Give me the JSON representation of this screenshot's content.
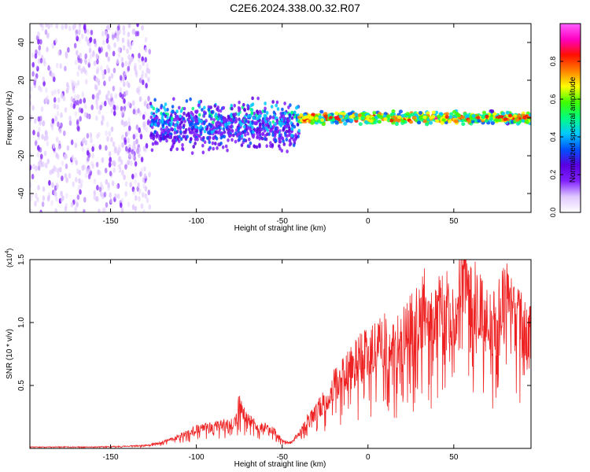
{
  "figure": {
    "title": "C2E6.2024.338.00.32.R07"
  },
  "chart_data": [
    {
      "type": "heatmap",
      "xlabel": "Height of straight line (km)",
      "ylabel": "Frequency (Hz)",
      "xlim": [
        -197,
        95
      ],
      "ylim": [
        -50,
        50
      ],
      "x_ticks": [
        -150,
        -100,
        -50,
        0,
        50
      ],
      "y_ticks": [
        -40,
        -20,
        0,
        20,
        40
      ],
      "grid": false,
      "colorbar": {
        "label": "Normalized spectral amplitude",
        "range": [
          0,
          1
        ],
        "ticks": [
          0.0,
          0.2,
          0.4,
          0.6,
          0.8
        ],
        "colormap": [
          "#ffffff",
          "#e0c8ff",
          "#8020ff",
          "#5a00e0",
          "#0050ff",
          "#00c8ff",
          "#00ff80",
          "#40ff00",
          "#ffff00",
          "#ff8000",
          "#ff1000",
          "#ff00c0",
          "#ff60ff"
        ]
      },
      "description_regions": [
        {
          "x_range": [
            -197,
            -127
          ],
          "freq_range": [
            -50,
            50
          ],
          "amplitude": 0.1
        },
        {
          "x_range": [
            -127,
            -40
          ],
          "freq_range": [
            -20,
            12
          ],
          "amplitude": 0.25
        },
        {
          "x_range": [
            -40,
            95
          ],
          "freq_range": [
            -4,
            4
          ],
          "amplitude": 0.75
        }
      ]
    },
    {
      "type": "line",
      "xlabel": "Height of straight line (km)",
      "ylabel": "SNR (10 * v/v)",
      "y_multiplier": "(x10^4)",
      "y_multiplier_base": "(x10",
      "y_multiplier_exp": "4",
      "y_multiplier_close": ")",
      "xlim": [
        -197,
        95
      ],
      "ylim": [
        0,
        1.5
      ],
      "x_ticks": [
        -150,
        -100,
        -50,
        0,
        50
      ],
      "y_ticks": [
        0.5,
        1.0,
        1.5
      ],
      "y_tick_labels": [
        "0.5",
        "1.0",
        "1.5"
      ],
      "grid": false,
      "line_color": "#ee2222",
      "series": [
        {
          "x": [
            -197,
            -180,
            -160,
            -140,
            -130,
            -120,
            -110,
            -100,
            -90,
            -80,
            -75,
            -70,
            -65,
            -60,
            -55,
            -50,
            -45,
            -40,
            -35,
            -30,
            -25,
            -20,
            -15,
            -10,
            -5,
            0,
            5,
            10,
            15,
            20,
            25,
            30,
            33,
            35,
            40,
            45,
            50,
            55,
            60,
            65,
            70,
            75,
            80,
            85,
            90,
            95
          ],
          "y": [
            0.01,
            0.01,
            0.01,
            0.015,
            0.02,
            0.04,
            0.08,
            0.13,
            0.15,
            0.17,
            0.35,
            0.2,
            0.15,
            0.14,
            0.12,
            0.05,
            0.04,
            0.1,
            0.2,
            0.28,
            0.37,
            0.48,
            0.55,
            0.62,
            0.7,
            0.78,
            0.8,
            0.85,
            0.78,
            0.85,
            0.95,
            1.0,
            1.2,
            0.9,
            1.05,
            1.2,
            0.95,
            1.45,
            1.1,
            1.2,
            0.95,
            1.0,
            1.25,
            1.0,
            0.95,
            0.9
          ]
        }
      ]
    }
  ]
}
